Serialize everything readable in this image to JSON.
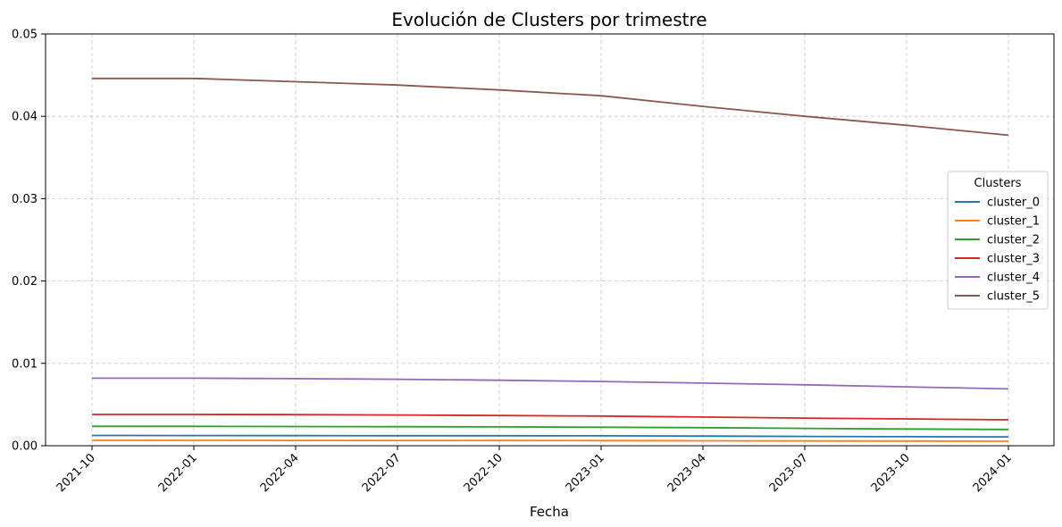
{
  "chart_data": {
    "type": "line",
    "title": "Evolución de Clusters por trimestre",
    "xlabel": "Fecha",
    "ylabel": "",
    "x": [
      "2021-10",
      "2022-01",
      "2022-04",
      "2022-07",
      "2022-10",
      "2023-01",
      "2023-04",
      "2023-07",
      "2023-10",
      "2024-01"
    ],
    "ylim": [
      0,
      0.05
    ],
    "yticks": [
      "0.00",
      "0.01",
      "0.02",
      "0.03",
      "0.04",
      "0.05"
    ],
    "grid": true,
    "legend": {
      "title": "Clusters",
      "position": "right"
    },
    "series": [
      {
        "name": "cluster_0",
        "color": "#1f77b4",
        "values": [
          0.00125,
          0.00124,
          0.00123,
          0.00122,
          0.00121,
          0.0012,
          0.00117,
          0.00113,
          0.0011,
          0.00107
        ]
      },
      {
        "name": "cluster_1",
        "color": "#ff7f0e",
        "values": [
          0.00065,
          0.00065,
          0.00064,
          0.00064,
          0.00063,
          0.00062,
          0.0006,
          0.00058,
          0.00056,
          0.00054
        ]
      },
      {
        "name": "cluster_2",
        "color": "#2ca02c",
        "values": [
          0.00235,
          0.00235,
          0.00233,
          0.00231,
          0.00229,
          0.00225,
          0.00219,
          0.0021,
          0.00203,
          0.00197
        ]
      },
      {
        "name": "cluster_3",
        "color": "#d62728",
        "values": [
          0.0038,
          0.0038,
          0.00377,
          0.00373,
          0.00367,
          0.0036,
          0.00348,
          0.00335,
          0.00325,
          0.00315
        ]
      },
      {
        "name": "cluster_4",
        "color": "#9467bd",
        "values": [
          0.0082,
          0.0082,
          0.00815,
          0.00807,
          0.00795,
          0.0078,
          0.0076,
          0.0074,
          0.00715,
          0.0069
        ]
      },
      {
        "name": "cluster_5",
        "color": "#8c564b",
        "values": [
          0.0446,
          0.0446,
          0.0442,
          0.0438,
          0.0432,
          0.0425,
          0.0412,
          0.04,
          0.0389,
          0.0377
        ]
      }
    ]
  }
}
